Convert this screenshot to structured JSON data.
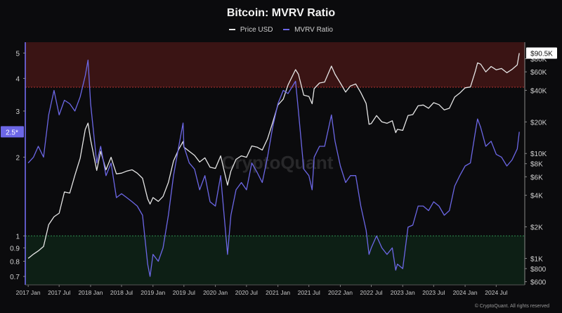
{
  "title": "Bitcoin: MVRV Ratio",
  "legend": [
    {
      "name": "Price USD",
      "color": "#e6e6e6"
    },
    {
      "name": "MVRV Ratio",
      "color": "#6c67e6"
    }
  ],
  "watermark": "CryptoQuant",
  "copyright": "© CryptoQuant. All rights reserved",
  "current_mvrv_label": "2.5*",
  "current_price_label": "$90.5K",
  "chart_data": {
    "type": "line",
    "title": "Bitcoin: MVRV Ratio",
    "x_ticks": [
      "2017 Jan",
      "2017 Jul",
      "2018 Jan",
      "2018 Jul",
      "2019 Jan",
      "2019 Jul",
      "2020 Jan",
      "2020 Jul",
      "2021 Jan",
      "2021 Jul",
      "2022 Jan",
      "2022 Jul",
      "2023 Jan",
      "2023 Jul",
      "2024 Jan",
      "2024 Jul"
    ],
    "left_axis": {
      "scale": "log",
      "ticks": [
        0.7,
        0.8,
        0.9,
        1,
        2,
        3,
        4,
        5
      ],
      "tick_labels": [
        "0.7",
        "0.8",
        "0.9",
        "1",
        "2",
        "3",
        "4",
        "5"
      ],
      "range": [
        0.65,
        5.5
      ]
    },
    "right_axis": {
      "scale": "log",
      "ticks": [
        600,
        800,
        1000,
        2000,
        4000,
        6000,
        8000,
        10000,
        20000,
        40000,
        60000,
        80000
      ],
      "tick_labels": [
        "$600",
        "$800",
        "$1K",
        "$2K",
        "$4K",
        "$6K",
        "$8K",
        "$10K",
        "$20K",
        "$40K",
        "$60K",
        "$80K"
      ],
      "range": [
        560,
        115000
      ]
    },
    "zones": [
      {
        "name": "overvalued",
        "from": 3.7,
        "to": 5.5,
        "color": "#3a1414"
      },
      {
        "name": "undervalued",
        "from": 0.65,
        "to": 1.0,
        "color": "#0d1f15"
      }
    ],
    "series": [
      {
        "name": "Price USD",
        "axis": "right",
        "color": "#e6e6e6",
        "points": [
          [
            "2017-01-01",
            1000
          ],
          [
            "2017-02-01",
            1100
          ],
          [
            "2017-03-01",
            1180
          ],
          [
            "2017-04-01",
            1300
          ],
          [
            "2017-05-01",
            2100
          ],
          [
            "2017-06-01",
            2500
          ],
          [
            "2017-07-01",
            2700
          ],
          [
            "2017-08-01",
            4300
          ],
          [
            "2017-09-01",
            4200
          ],
          [
            "2017-10-01",
            6200
          ],
          [
            "2017-11-01",
            9000
          ],
          [
            "2017-12-01",
            17000
          ],
          [
            "2017-12-17",
            19500
          ],
          [
            "2018-01-01",
            13500
          ],
          [
            "2018-02-06",
            6900
          ],
          [
            "2018-03-01",
            10500
          ],
          [
            "2018-04-01",
            7000
          ],
          [
            "2018-05-01",
            9200
          ],
          [
            "2018-06-01",
            6400
          ],
          [
            "2018-07-01",
            6500
          ],
          [
            "2018-08-01",
            6800
          ],
          [
            "2018-09-01",
            7000
          ],
          [
            "2018-10-01",
            6500
          ],
          [
            "2018-11-01",
            5800
          ],
          [
            "2018-12-01",
            3700
          ],
          [
            "2018-12-15",
            3300
          ],
          [
            "2019-01-01",
            3800
          ],
          [
            "2019-02-01",
            3500
          ],
          [
            "2019-03-01",
            3900
          ],
          [
            "2019-04-01",
            5300
          ],
          [
            "2019-05-01",
            8500
          ],
          [
            "2019-06-01",
            11000
          ],
          [
            "2019-06-26",
            13000
          ],
          [
            "2019-07-01",
            11500
          ],
          [
            "2019-08-01",
            10500
          ],
          [
            "2019-09-01",
            9600
          ],
          [
            "2019-10-01",
            8300
          ],
          [
            "2019-11-01",
            9100
          ],
          [
            "2019-12-01",
            7400
          ],
          [
            "2020-01-01",
            7200
          ],
          [
            "2020-02-01",
            9500
          ],
          [
            "2020-03-12",
            5000
          ],
          [
            "2020-04-01",
            6800
          ],
          [
            "2020-05-01",
            8800
          ],
          [
            "2020-06-01",
            9500
          ],
          [
            "2020-07-01",
            9200
          ],
          [
            "2020-08-01",
            11800
          ],
          [
            "2020-09-01",
            11500
          ],
          [
            "2020-10-01",
            10800
          ],
          [
            "2020-11-01",
            13800
          ],
          [
            "2020-12-01",
            19700
          ],
          [
            "2021-01-01",
            29000
          ],
          [
            "2021-02-01",
            33000
          ],
          [
            "2021-03-01",
            45000
          ],
          [
            "2021-04-14",
            63000
          ],
          [
            "2021-05-01",
            57000
          ],
          [
            "2021-06-01",
            36000
          ],
          [
            "2021-07-01",
            35000
          ],
          [
            "2021-07-20",
            29800
          ],
          [
            "2021-08-01",
            41500
          ],
          [
            "2021-09-01",
            47000
          ],
          [
            "2021-10-01",
            48000
          ],
          [
            "2021-11-10",
            68000
          ],
          [
            "2021-12-01",
            57000
          ],
          [
            "2022-01-01",
            47000
          ],
          [
            "2022-02-01",
            38500
          ],
          [
            "2022-03-01",
            44000
          ],
          [
            "2022-04-01",
            46000
          ],
          [
            "2022-05-01",
            38000
          ],
          [
            "2022-06-01",
            30000
          ],
          [
            "2022-06-18",
            19000
          ],
          [
            "2022-07-01",
            19300
          ],
          [
            "2022-08-01",
            23000
          ],
          [
            "2022-09-01",
            20000
          ],
          [
            "2022-10-01",
            19400
          ],
          [
            "2022-11-01",
            20500
          ],
          [
            "2022-11-21",
            15800
          ],
          [
            "2022-12-01",
            17000
          ],
          [
            "2023-01-01",
            16600
          ],
          [
            "2023-02-01",
            23000
          ],
          [
            "2023-03-01",
            23500
          ],
          [
            "2023-04-01",
            28500
          ],
          [
            "2023-05-01",
            29000
          ],
          [
            "2023-06-01",
            27000
          ],
          [
            "2023-07-01",
            30500
          ],
          [
            "2023-08-01",
            29200
          ],
          [
            "2023-09-01",
            26000
          ],
          [
            "2023-10-01",
            27000
          ],
          [
            "2023-11-01",
            34500
          ],
          [
            "2023-12-01",
            37700
          ],
          [
            "2024-01-01",
            42300
          ],
          [
            "2024-02-01",
            43000
          ],
          [
            "2024-03-01",
            61000
          ],
          [
            "2024-03-14",
            73000
          ],
          [
            "2024-04-01",
            71000
          ],
          [
            "2024-05-01",
            60000
          ],
          [
            "2024-06-01",
            67500
          ],
          [
            "2024-07-01",
            62700
          ],
          [
            "2024-08-01",
            64600
          ],
          [
            "2024-09-01",
            58900
          ],
          [
            "2024-10-01",
            63300
          ],
          [
            "2024-11-01",
            70000
          ],
          [
            "2024-11-13",
            90500
          ]
        ]
      },
      {
        "name": "MVRV Ratio",
        "axis": "left",
        "color": "#6c67e6",
        "points": [
          [
            "2017-01-01",
            1.9
          ],
          [
            "2017-02-01",
            2.0
          ],
          [
            "2017-03-01",
            2.2
          ],
          [
            "2017-04-01",
            2.0
          ],
          [
            "2017-05-01",
            2.9
          ],
          [
            "2017-06-01",
            3.6
          ],
          [
            "2017-07-01",
            2.9
          ],
          [
            "2017-08-01",
            3.3
          ],
          [
            "2017-09-01",
            3.2
          ],
          [
            "2017-10-01",
            3.0
          ],
          [
            "2017-11-01",
            3.4
          ],
          [
            "2017-12-01",
            4.1
          ],
          [
            "2017-12-17",
            4.7
          ],
          [
            "2018-01-01",
            3.2
          ],
          [
            "2018-02-06",
            1.9
          ],
          [
            "2018-03-01",
            2.2
          ],
          [
            "2018-04-01",
            1.7
          ],
          [
            "2018-05-01",
            1.9
          ],
          [
            "2018-06-01",
            1.4
          ],
          [
            "2018-07-01",
            1.45
          ],
          [
            "2018-08-01",
            1.4
          ],
          [
            "2018-09-01",
            1.35
          ],
          [
            "2018-10-01",
            1.3
          ],
          [
            "2018-11-01",
            1.2
          ],
          [
            "2018-12-01",
            0.78
          ],
          [
            "2018-12-15",
            0.7
          ],
          [
            "2019-01-01",
            0.85
          ],
          [
            "2019-02-01",
            0.8
          ],
          [
            "2019-03-01",
            0.9
          ],
          [
            "2019-04-01",
            1.2
          ],
          [
            "2019-05-01",
            1.7
          ],
          [
            "2019-06-01",
            2.2
          ],
          [
            "2019-06-26",
            2.7
          ],
          [
            "2019-07-01",
            2.2
          ],
          [
            "2019-08-01",
            1.9
          ],
          [
            "2019-09-01",
            1.8
          ],
          [
            "2019-10-01",
            1.5
          ],
          [
            "2019-11-01",
            1.7
          ],
          [
            "2019-12-01",
            1.35
          ],
          [
            "2020-01-01",
            1.3
          ],
          [
            "2020-02-01",
            1.7
          ],
          [
            "2020-03-12",
            0.85
          ],
          [
            "2020-04-01",
            1.2
          ],
          [
            "2020-05-01",
            1.5
          ],
          [
            "2020-06-01",
            1.6
          ],
          [
            "2020-07-01",
            1.5
          ],
          [
            "2020-08-01",
            1.9
          ],
          [
            "2020-09-01",
            1.75
          ],
          [
            "2020-10-01",
            1.6
          ],
          [
            "2020-11-01",
            2.0
          ],
          [
            "2020-12-01",
            2.6
          ],
          [
            "2021-01-01",
            3.2
          ],
          [
            "2021-02-01",
            3.6
          ],
          [
            "2021-03-01",
            3.5
          ],
          [
            "2021-04-14",
            3.9
          ],
          [
            "2021-05-01",
            3.0
          ],
          [
            "2021-06-01",
            1.8
          ],
          [
            "2021-07-01",
            1.7
          ],
          [
            "2021-07-20",
            1.5
          ],
          [
            "2021-08-01",
            2.0
          ],
          [
            "2021-09-01",
            2.2
          ],
          [
            "2021-10-01",
            2.2
          ],
          [
            "2021-11-10",
            2.9
          ],
          [
            "2021-12-01",
            2.3
          ],
          [
            "2022-01-01",
            1.85
          ],
          [
            "2022-02-01",
            1.6
          ],
          [
            "2022-03-01",
            1.7
          ],
          [
            "2022-04-01",
            1.7
          ],
          [
            "2022-05-01",
            1.3
          ],
          [
            "2022-06-01",
            1.05
          ],
          [
            "2022-06-18",
            0.85
          ],
          [
            "2022-07-01",
            0.9
          ],
          [
            "2022-08-01",
            1.0
          ],
          [
            "2022-09-01",
            0.9
          ],
          [
            "2022-10-01",
            0.85
          ],
          [
            "2022-11-01",
            0.9
          ],
          [
            "2022-11-21",
            0.74
          ],
          [
            "2022-12-01",
            0.78
          ],
          [
            "2023-01-01",
            0.75
          ],
          [
            "2023-02-01",
            1.08
          ],
          [
            "2023-03-01",
            1.1
          ],
          [
            "2023-04-01",
            1.3
          ],
          [
            "2023-05-01",
            1.3
          ],
          [
            "2023-06-01",
            1.25
          ],
          [
            "2023-07-01",
            1.35
          ],
          [
            "2023-08-01",
            1.3
          ],
          [
            "2023-09-01",
            1.2
          ],
          [
            "2023-10-01",
            1.25
          ],
          [
            "2023-11-01",
            1.55
          ],
          [
            "2023-12-01",
            1.7
          ],
          [
            "2024-01-01",
            1.85
          ],
          [
            "2024-02-01",
            1.9
          ],
          [
            "2024-03-01",
            2.5
          ],
          [
            "2024-03-14",
            2.8
          ],
          [
            "2024-04-01",
            2.6
          ],
          [
            "2024-05-01",
            2.2
          ],
          [
            "2024-06-01",
            2.3
          ],
          [
            "2024-07-01",
            2.05
          ],
          [
            "2024-08-01",
            2.0
          ],
          [
            "2024-09-01",
            1.85
          ],
          [
            "2024-10-01",
            1.95
          ],
          [
            "2024-11-01",
            2.15
          ],
          [
            "2024-11-13",
            2.5
          ]
        ]
      }
    ]
  }
}
